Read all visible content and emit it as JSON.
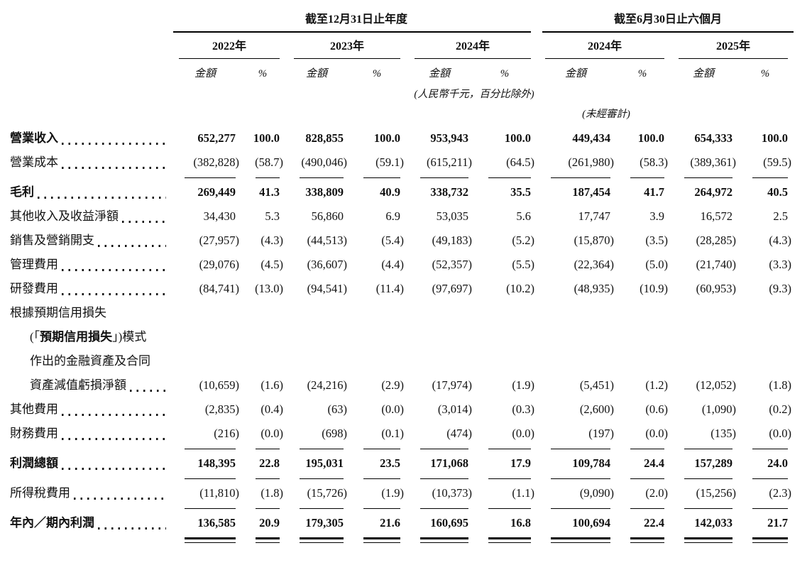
{
  "table": {
    "col_groups": [
      {
        "title": "截至12月31日止年度",
        "years": [
          "2022年",
          "2023年",
          "2024年"
        ]
      },
      {
        "title": "截至6月30日止六個月",
        "years": [
          "2024年",
          "2025年"
        ]
      }
    ],
    "sub_headers": {
      "amount": "金額",
      "percent": "%"
    },
    "notes": {
      "currency": "(人民幣千元，百分比除外)",
      "unaudited": "(未經審計)"
    },
    "rows": [
      {
        "label": "營業收入",
        "bold": true,
        "leader": true,
        "values": [
          "652,277",
          "100.0",
          "828,855",
          "100.0",
          "953,943",
          "100.0",
          "449,434",
          "100.0",
          "654,333",
          "100.0"
        ]
      },
      {
        "label": "營業成本",
        "leader": true,
        "rule_below": true,
        "values": [
          "(382,828)",
          "(58.7)",
          "(490,046)",
          "(59.1)",
          "(615,211)",
          "(64.5)",
          "(261,980)",
          "(58.3)",
          "(389,361)",
          "(59.5)"
        ]
      },
      {
        "label": "毛利",
        "bold": true,
        "leader": true,
        "values": [
          "269,449",
          "41.3",
          "338,809",
          "40.9",
          "338,732",
          "35.5",
          "187,454",
          "41.7",
          "264,972",
          "40.5"
        ]
      },
      {
        "label": "其他收入及收益淨額",
        "leader": true,
        "values": [
          "34,430",
          "5.3",
          "56,860",
          "6.9",
          "53,035",
          "5.6",
          "17,747",
          "3.9",
          "16,572",
          "2.5"
        ]
      },
      {
        "label": "銷售及營銷開支",
        "leader": true,
        "values": [
          "(27,957)",
          "(4.3)",
          "(44,513)",
          "(5.4)",
          "(49,183)",
          "(5.2)",
          "(15,870)",
          "(3.5)",
          "(28,285)",
          "(4.3)"
        ]
      },
      {
        "label": "管理費用",
        "leader": true,
        "values": [
          "(29,076)",
          "(4.5)",
          "(36,607)",
          "(4.4)",
          "(52,357)",
          "(5.5)",
          "(22,364)",
          "(5.0)",
          "(21,740)",
          "(3.3)"
        ]
      },
      {
        "label": "研發費用",
        "leader": true,
        "values": [
          "(84,741)",
          "(13.0)",
          "(94,541)",
          "(11.4)",
          "(97,697)",
          "(10.2)",
          "(48,935)",
          "(10.9)",
          "(60,953)",
          "(9.3)"
        ]
      },
      {
        "label": "根據預期信用損失",
        "values": null
      },
      {
        "label_parts": {
          "pre": "(「",
          "bold": "預期信用損失",
          "post": "」)模式"
        },
        "indent": true,
        "values": null
      },
      {
        "label": "作出的金融資產及合同",
        "indent": true,
        "values": null
      },
      {
        "label": "資產減值虧損淨額",
        "indent": true,
        "leader": true,
        "values": [
          "(10,659)",
          "(1.6)",
          "(24,216)",
          "(2.9)",
          "(17,974)",
          "(1.9)",
          "(5,451)",
          "(1.2)",
          "(12,052)",
          "(1.8)"
        ]
      },
      {
        "label": "其他費用",
        "leader": true,
        "values": [
          "(2,835)",
          "(0.4)",
          "(63)",
          "(0.0)",
          "(3,014)",
          "(0.3)",
          "(2,600)",
          "(0.6)",
          "(1,090)",
          "(0.2)"
        ]
      },
      {
        "label": "財務費用",
        "leader": true,
        "rule_below": true,
        "values": [
          "(216)",
          "(0.0)",
          "(698)",
          "(0.1)",
          "(474)",
          "(0.0)",
          "(197)",
          "(0.0)",
          "(135)",
          "(0.0)"
        ]
      },
      {
        "label": "利潤總額",
        "bold": true,
        "leader": true,
        "rule_below": true,
        "values": [
          "148,395",
          "22.8",
          "195,031",
          "23.5",
          "171,068",
          "17.9",
          "109,784",
          "24.4",
          "157,289",
          "24.0"
        ]
      },
      {
        "label": "所得稅費用",
        "leader": true,
        "rule_below": true,
        "values": [
          "(11,810)",
          "(1.8)",
          "(15,726)",
          "(1.9)",
          "(10,373)",
          "(1.1)",
          "(9,090)",
          "(2.0)",
          "(15,256)",
          "(2.3)"
        ]
      },
      {
        "label": "年內／期內利潤",
        "bold": true,
        "leader": true,
        "double_rule_below": true,
        "values": [
          "136,585",
          "20.9",
          "179,305",
          "21.6",
          "160,695",
          "16.8",
          "100,694",
          "22.4",
          "142,033",
          "21.7"
        ]
      }
    ]
  }
}
